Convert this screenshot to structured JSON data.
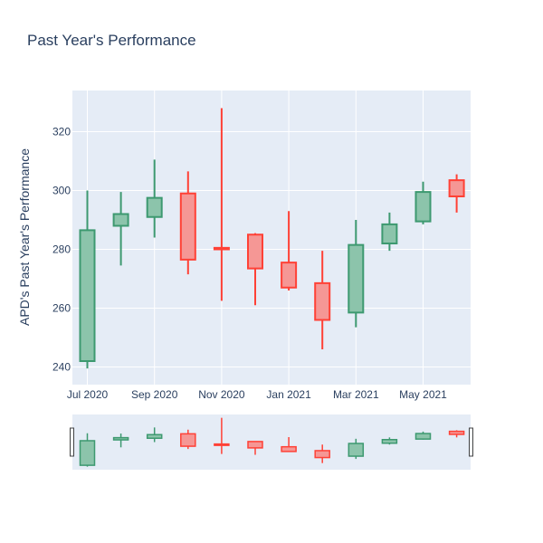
{
  "chart_data": {
    "type": "candlestick",
    "title": "Past Year's Performance",
    "xlabel": "",
    "ylabel": "APD's Past Year's Performance",
    "y_ticks": [
      240,
      260,
      280,
      300,
      320
    ],
    "x_ticks": [
      {
        "label": "Jul 2020",
        "month_index": 0
      },
      {
        "label": "Sep 2020",
        "month_index": 2
      },
      {
        "label": "Nov 2020",
        "month_index": 4
      },
      {
        "label": "Jan 2021",
        "month_index": 6
      },
      {
        "label": "Mar 2021",
        "month_index": 8
      },
      {
        "label": "May 2021",
        "month_index": 10
      }
    ],
    "ylim": [
      234,
      334
    ],
    "range_slider": true,
    "colors": {
      "increasing": "#3d9970",
      "increasing_fill": "#8cc4ab",
      "decreasing": "#ff4136",
      "decreasing_fill": "#f59795",
      "plot_bg": "#e5ecf6",
      "grid": "#ffffff"
    },
    "candles": [
      {
        "month_index": 0,
        "open": 242.0,
        "high": 300.0,
        "low": 239.5,
        "close": 286.5
      },
      {
        "month_index": 1,
        "open": 288.0,
        "high": 299.5,
        "low": 274.5,
        "close": 292.0
      },
      {
        "month_index": 2,
        "open": 291.0,
        "high": 310.5,
        "low": 284.0,
        "close": 297.5
      },
      {
        "month_index": 3,
        "open": 299.0,
        "high": 306.5,
        "low": 271.5,
        "close": 276.5
      },
      {
        "month_index": 4,
        "open": 280.5,
        "high": 328.0,
        "low": 262.5,
        "close": 280.0
      },
      {
        "month_index": 5,
        "open": 285.0,
        "high": 285.5,
        "low": 261.0,
        "close": 273.5
      },
      {
        "month_index": 6,
        "open": 275.5,
        "high": 293.0,
        "low": 266.0,
        "close": 267.0
      },
      {
        "month_index": 7,
        "open": 268.5,
        "high": 279.5,
        "low": 246.0,
        "close": 256.0
      },
      {
        "month_index": 8,
        "open": 258.5,
        "high": 290.0,
        "low": 253.5,
        "close": 281.5
      },
      {
        "month_index": 9,
        "open": 282.0,
        "high": 292.5,
        "low": 279.5,
        "close": 288.5
      },
      {
        "month_index": 10,
        "open": 289.5,
        "high": 303.0,
        "low": 288.5,
        "close": 299.5
      },
      {
        "month_index": 11,
        "open": 303.5,
        "high": 305.5,
        "low": 292.5,
        "close": 298.0
      }
    ]
  }
}
